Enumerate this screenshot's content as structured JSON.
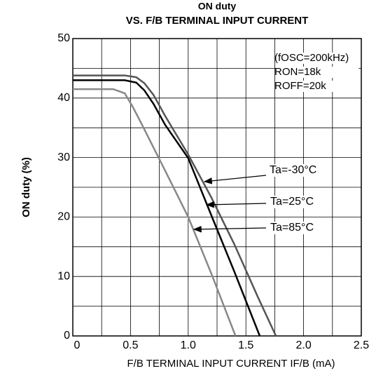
{
  "chart_data": {
    "type": "line",
    "title": "ON duty",
    "subtitle": "VS. F/B TERMINAL INPUT CURRENT",
    "xlabel": "F/B TERMINAL INPUT CURRENT IF/B (mA)",
    "ylabel": "ON duty (%)",
    "xlim": [
      0,
      2.5
    ],
    "ylim": [
      0,
      50
    ],
    "xticks": [
      0,
      0.5,
      {
        "value": 1,
        "label": "1.0"
      },
      1.5,
      {
        "value": 2,
        "label": "2.0"
      },
      2.5
    ],
    "yticks": [
      0,
      10,
      20,
      30,
      40,
      50
    ],
    "xminor": [
      0.25,
      0.75,
      1.25,
      1.75,
      2.25
    ],
    "yminor": [
      5,
      15,
      25,
      35,
      45
    ],
    "grid": true,
    "annotations": [
      "(fOSC=200kHz)",
      "RON=18k",
      "ROFF=20k"
    ],
    "series": [
      {
        "name": "Ta=-30°C",
        "color": "#555555",
        "x": [
          0,
          0.45,
          0.55,
          0.62,
          0.7,
          0.8,
          1.0,
          1.2,
          1.4,
          1.6,
          1.76
        ],
        "values": [
          43.8,
          43.8,
          43.5,
          42.5,
          40.5,
          37,
          30.5,
          23.3,
          15.4,
          6.7,
          0
        ]
      },
      {
        "name": "Ta=25°C",
        "color": "#000000",
        "x": [
          0,
          0.45,
          0.55,
          0.62,
          0.7,
          0.8,
          1.0,
          1.2,
          1.4,
          1.62
        ],
        "values": [
          43,
          43,
          42.6,
          41.3,
          39,
          35.5,
          29.9,
          20.3,
          10.8,
          0
        ]
      },
      {
        "name": "Ta=85°C",
        "color": "#888888",
        "x": [
          0,
          0.35,
          0.45,
          0.52,
          0.6,
          0.8,
          1.0,
          1.2,
          1.41
        ],
        "values": [
          41.5,
          41.5,
          40.8,
          38.5,
          35.5,
          27.8,
          20,
          10.5,
          0
        ]
      }
    ]
  }
}
